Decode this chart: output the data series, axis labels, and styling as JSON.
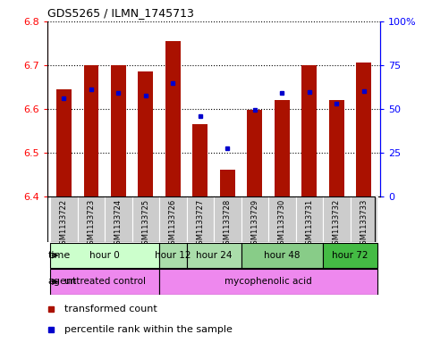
{
  "title": "GDS5265 / ILMN_1745713",
  "samples": [
    "GSM1133722",
    "GSM1133723",
    "GSM1133724",
    "GSM1133725",
    "GSM1133726",
    "GSM1133727",
    "GSM1133728",
    "GSM1133729",
    "GSM1133730",
    "GSM1133731",
    "GSM1133732",
    "GSM1133733"
  ],
  "red_values": [
    6.645,
    6.7,
    6.7,
    6.685,
    6.755,
    6.565,
    6.462,
    6.597,
    6.62,
    6.7,
    6.62,
    6.705
  ],
  "blue_values": [
    6.625,
    6.645,
    6.636,
    6.63,
    6.658,
    6.583,
    6.51,
    6.597,
    6.636,
    6.638,
    6.612,
    6.64
  ],
  "ylim": [
    6.4,
    6.8
  ],
  "y2lim": [
    0,
    100
  ],
  "yticks": [
    6.4,
    6.5,
    6.6,
    6.7,
    6.8
  ],
  "y2ticks": [
    0,
    25,
    50,
    75,
    100
  ],
  "y2ticklabels": [
    "0",
    "25",
    "50",
    "75",
    "100%"
  ],
  "time_groups": [
    {
      "label": "hour 0",
      "start": 0,
      "end": 3,
      "color": "#ccffcc"
    },
    {
      "label": "hour 12",
      "start": 4,
      "end": 4,
      "color": "#aaddaa"
    },
    {
      "label": "hour 24",
      "start": 5,
      "end": 6,
      "color": "#aaddaa"
    },
    {
      "label": "hour 48",
      "start": 7,
      "end": 9,
      "color": "#88cc88"
    },
    {
      "label": "hour 72",
      "start": 10,
      "end": 11,
      "color": "#44bb44"
    }
  ],
  "agent_groups": [
    {
      "label": "untreated control",
      "start": 0,
      "end": 3,
      "color": "#ee88ee"
    },
    {
      "label": "mycophenolic acid",
      "start": 4,
      "end": 11,
      "color": "#ee88ee"
    }
  ],
  "bar_color": "#aa1100",
  "dot_color": "#0000cc",
  "bar_width": 0.55,
  "legend_red": "transformed count",
  "legend_blue": "percentile rank within the sample",
  "background_color": "#ffffff",
  "xtick_bg": "#cccccc",
  "border_color": "#000000"
}
